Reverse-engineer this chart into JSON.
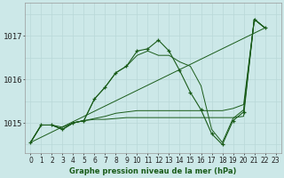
{
  "bg_color": "#cce8e8",
  "grid_minor_color": "#b8d8d8",
  "grid_major_color": "#c0dcdc",
  "line_color": "#1a5c1a",
  "xlabel": "Graphe pression niveau de la mer (hPa)",
  "ylim": [
    1014.3,
    1017.75
  ],
  "xlim": [
    -0.5,
    23.5
  ],
  "yticks": [
    1015,
    1016,
    1017
  ],
  "xticks": [
    0,
    1,
    2,
    3,
    4,
    5,
    6,
    7,
    8,
    9,
    10,
    11,
    12,
    13,
    14,
    15,
    16,
    17,
    18,
    19,
    20,
    21,
    22,
    23
  ],
  "line1_y": [
    1014.55,
    1014.95,
    1014.95,
    1014.85,
    1015.0,
    1015.05,
    1015.55,
    1015.82,
    1016.15,
    1016.3,
    1016.65,
    1016.7,
    1016.9,
    1016.65,
    1016.2,
    1015.7,
    1015.3,
    1014.75,
    1014.5,
    1015.05,
    1015.25,
    1017.38,
    1017.18
  ],
  "line2_y": [
    1014.55,
    1014.95,
    1014.95,
    1014.85,
    1015.0,
    1015.05,
    1015.08,
    1015.08,
    1015.1,
    1015.12,
    1015.12,
    1015.12,
    1015.12,
    1015.12,
    1015.12,
    1015.12,
    1015.12,
    1015.12,
    1015.12,
    1015.12,
    1015.15,
    1017.38,
    1017.18
  ],
  "line3_y": [
    1014.55,
    1014.95,
    1014.95,
    1014.9,
    1015.0,
    1015.05,
    1015.1,
    1015.15,
    1015.22,
    1015.25,
    1015.28,
    1015.28,
    1015.28,
    1015.28,
    1015.28,
    1015.28,
    1015.28,
    1015.28,
    1015.28,
    1015.33,
    1015.42,
    1017.38,
    1017.18
  ],
  "line4_y": [
    1014.55,
    1014.95,
    1014.95,
    1014.85,
    1015.0,
    1015.05,
    1015.55,
    1015.82,
    1016.15,
    1016.3,
    1016.55,
    1016.65,
    1016.55,
    1016.55,
    1016.4,
    1016.3,
    1015.85,
    1014.85,
    1014.55,
    1015.1,
    1015.3,
    1017.38,
    1017.18
  ],
  "xlabel_fontsize": 6.0,
  "tick_fontsize": 5.5,
  "ytick_fontsize": 6.5
}
